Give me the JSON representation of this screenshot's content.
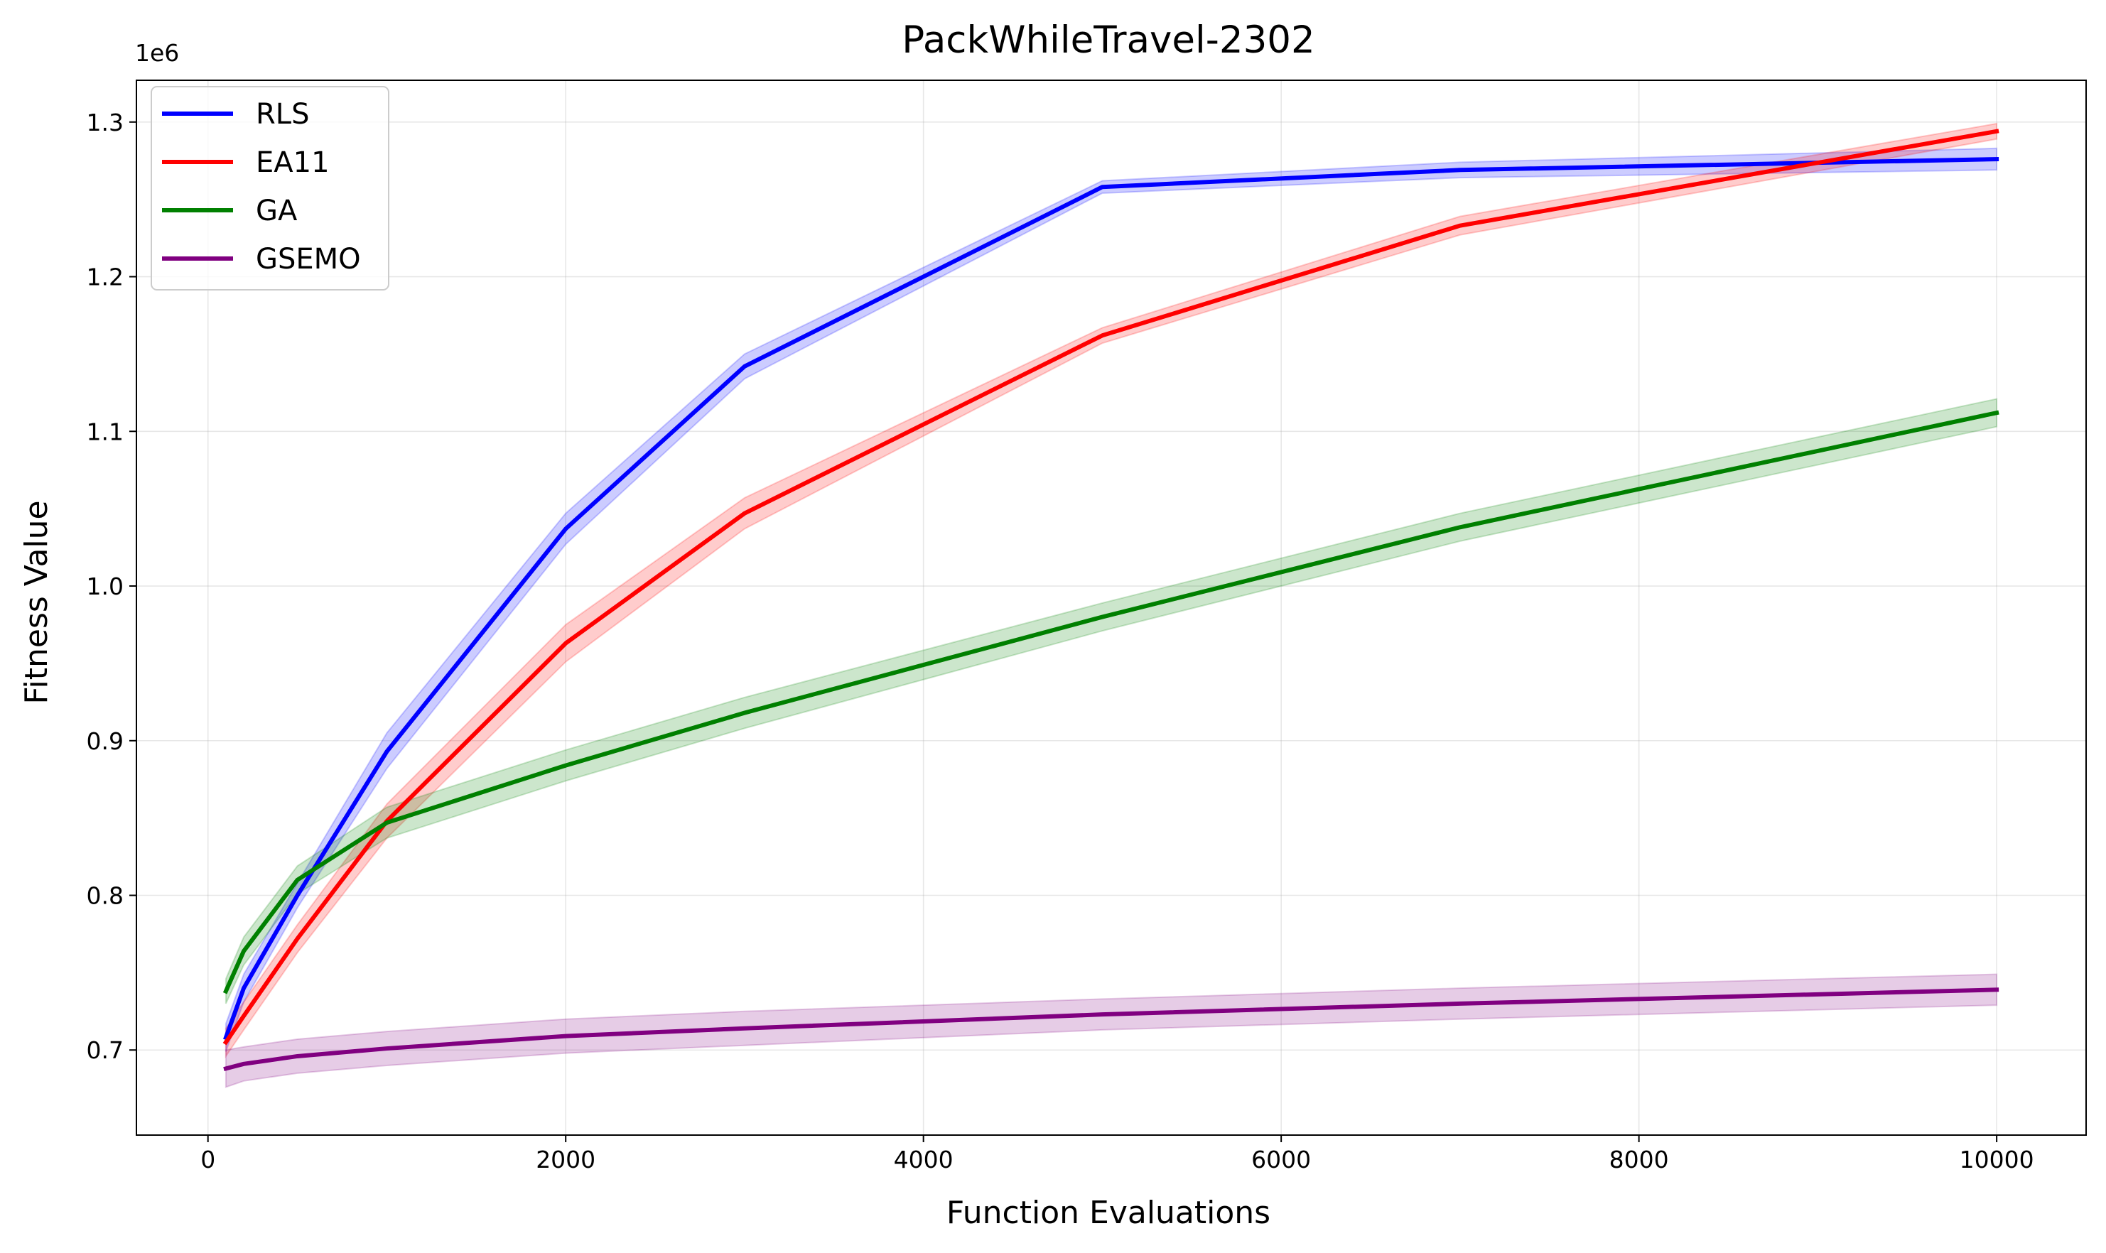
{
  "chart_data": {
    "type": "line",
    "title": "PackWhileTravel-2302",
    "xlabel": "Function Evaluations",
    "ylabel": "Fitness Value",
    "y_offset_label": "1e6",
    "xlim": [
      -400,
      10500
    ],
    "ylim": [
      645000,
      1327000
    ],
    "xticks": [
      0,
      2000,
      4000,
      6000,
      8000,
      10000
    ],
    "xtick_labels": [
      "0",
      "2000",
      "4000",
      "6000",
      "8000",
      "10000"
    ],
    "yticks": [
      700000,
      800000,
      900000,
      1000000,
      1100000,
      1200000,
      1300000
    ],
    "ytick_labels": [
      "0.7",
      "0.8",
      "0.9",
      "1.0",
      "1.1",
      "1.2",
      "1.3"
    ],
    "grid": true,
    "legend_position": "top-left",
    "x": [
      100,
      200,
      500,
      1000,
      2000,
      3000,
      5000,
      7000,
      10000
    ],
    "series": [
      {
        "name": "RLS",
        "color": "#0000ff",
        "values": [
          708000,
          740000,
          800000,
          893000,
          1037000,
          1142000,
          1258000,
          1269000,
          1276000
        ],
        "lower": [
          699000,
          731000,
          792000,
          882000,
          1027000,
          1134000,
          1254000,
          1264000,
          1269000
        ],
        "upper": [
          717000,
          749000,
          808000,
          905000,
          1047000,
          1150000,
          1262000,
          1274000,
          1283000
        ]
      },
      {
        "name": "EA11",
        "color": "#ff0000",
        "values": [
          705000,
          722000,
          772000,
          848000,
          963000,
          1047000,
          1162000,
          1233000,
          1294000
        ],
        "lower": [
          696000,
          713000,
          763000,
          837000,
          951000,
          1037000,
          1157000,
          1227000,
          1289000
        ],
        "upper": [
          714000,
          731000,
          781000,
          859000,
          975000,
          1057000,
          1167000,
          1239000,
          1299000
        ]
      },
      {
        "name": "GA",
        "color": "#008000",
        "values": [
          738000,
          764000,
          810000,
          847000,
          884000,
          918000,
          980000,
          1038000,
          1112000
        ],
        "lower": [
          730000,
          755000,
          801000,
          837000,
          874000,
          908000,
          971000,
          1029000,
          1103000
        ],
        "upper": [
          746000,
          773000,
          819000,
          857000,
          894000,
          928000,
          989000,
          1047000,
          1121000
        ]
      },
      {
        "name": "GSEMO",
        "color": "#800080",
        "values": [
          688000,
          691000,
          696000,
          701000,
          709000,
          714000,
          723000,
          730000,
          739000
        ],
        "lower": [
          676000,
          680000,
          685000,
          690000,
          698000,
          703000,
          713000,
          720000,
          729000
        ],
        "upper": [
          700000,
          702000,
          707000,
          712000,
          720000,
          725000,
          733000,
          740000,
          749000
        ]
      }
    ]
  }
}
